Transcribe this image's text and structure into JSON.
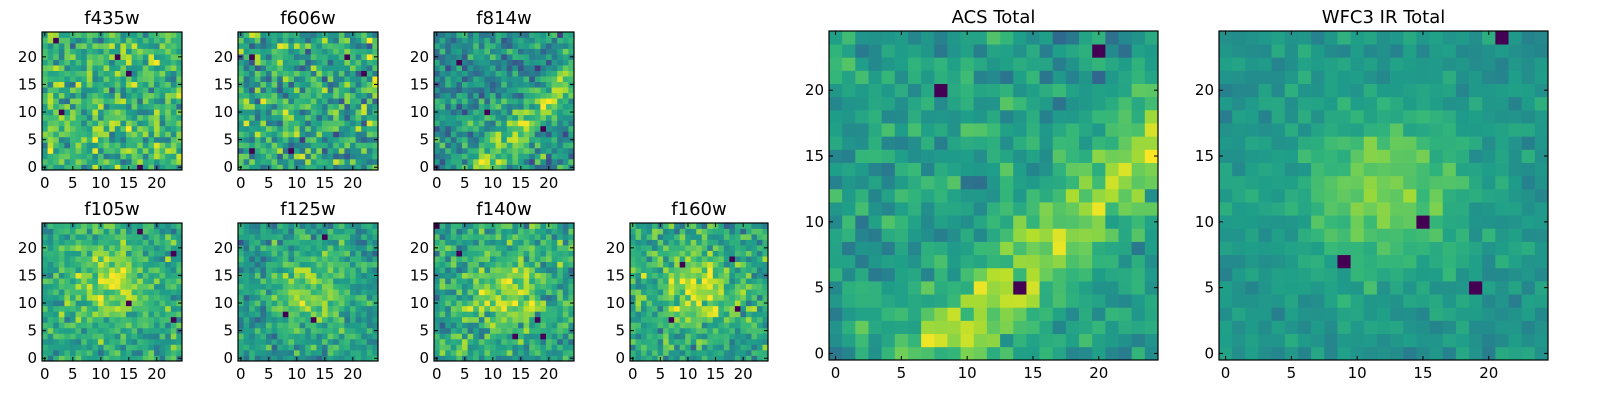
{
  "chart_data": [
    {
      "type": "heatmap",
      "title": "f435w",
      "grid": [
        25,
        25
      ],
      "colormap": "viridis",
      "xticks": [
        0,
        5,
        10,
        15,
        20
      ],
      "yticks": [
        0,
        5,
        10,
        15,
        20
      ],
      "seed": 11,
      "kind": "noise",
      "background": 0.66,
      "noise": 0.24
    },
    {
      "type": "heatmap",
      "title": "f606w",
      "grid": [
        25,
        25
      ],
      "colormap": "viridis",
      "xticks": [
        0,
        5,
        10,
        15,
        20
      ],
      "yticks": [
        0,
        5,
        10,
        15,
        20
      ],
      "seed": 23,
      "kind": "noise",
      "background": 0.6,
      "noise": 0.27
    },
    {
      "type": "heatmap",
      "title": "f814w",
      "grid": [
        25,
        25
      ],
      "colormap": "viridis",
      "xticks": [
        0,
        5,
        10,
        15,
        20
      ],
      "yticks": [
        0,
        5,
        10,
        15,
        20
      ],
      "seed": 37,
      "kind": "band",
      "background": 0.5,
      "noise": 0.22
    },
    {
      "type": "heatmap",
      "title": "f105w",
      "grid": [
        25,
        25
      ],
      "colormap": "viridis",
      "xticks": [
        0,
        5,
        10,
        15,
        20
      ],
      "yticks": [
        0,
        5,
        10,
        15,
        20
      ],
      "seed": 41,
      "kind": "blob",
      "background": 0.6,
      "noise": 0.17
    },
    {
      "type": "heatmap",
      "title": "f125w",
      "grid": [
        25,
        25
      ],
      "colormap": "viridis",
      "xticks": [
        0,
        5,
        10,
        15,
        20
      ],
      "yticks": [
        0,
        5,
        10,
        15,
        20
      ],
      "seed": 53,
      "kind": "blob",
      "background": 0.55,
      "noise": 0.18
    },
    {
      "type": "heatmap",
      "title": "f140w",
      "grid": [
        25,
        25
      ],
      "colormap": "viridis",
      "xticks": [
        0,
        5,
        10,
        15,
        20
      ],
      "yticks": [
        0,
        5,
        10,
        15,
        20
      ],
      "seed": 67,
      "kind": "blob",
      "background": 0.6,
      "noise": 0.2
    },
    {
      "type": "heatmap",
      "title": "f160w",
      "grid": [
        25,
        25
      ],
      "colormap": "viridis",
      "xticks": [
        0,
        5,
        10,
        15,
        20
      ],
      "yticks": [
        0,
        5,
        10,
        15,
        20
      ],
      "seed": 79,
      "kind": "blob",
      "background": 0.6,
      "noise": 0.2
    },
    {
      "type": "heatmap",
      "title": "ACS Total",
      "grid": [
        25,
        25
      ],
      "colormap": "viridis",
      "xticks": [
        0,
        5,
        10,
        15,
        20
      ],
      "yticks": [
        0,
        5,
        10,
        15,
        20
      ],
      "seed": 97,
      "kind": "band",
      "background": 0.55,
      "noise": 0.14
    },
    {
      "type": "heatmap",
      "title": "WFC3 IR Total",
      "grid": [
        25,
        25
      ],
      "colormap": "viridis",
      "xticks": [
        0,
        5,
        10,
        15,
        20
      ],
      "yticks": [
        0,
        5,
        10,
        15,
        20
      ],
      "seed": 101,
      "kind": "blob",
      "background": 0.52,
      "noise": 0.08
    }
  ]
}
